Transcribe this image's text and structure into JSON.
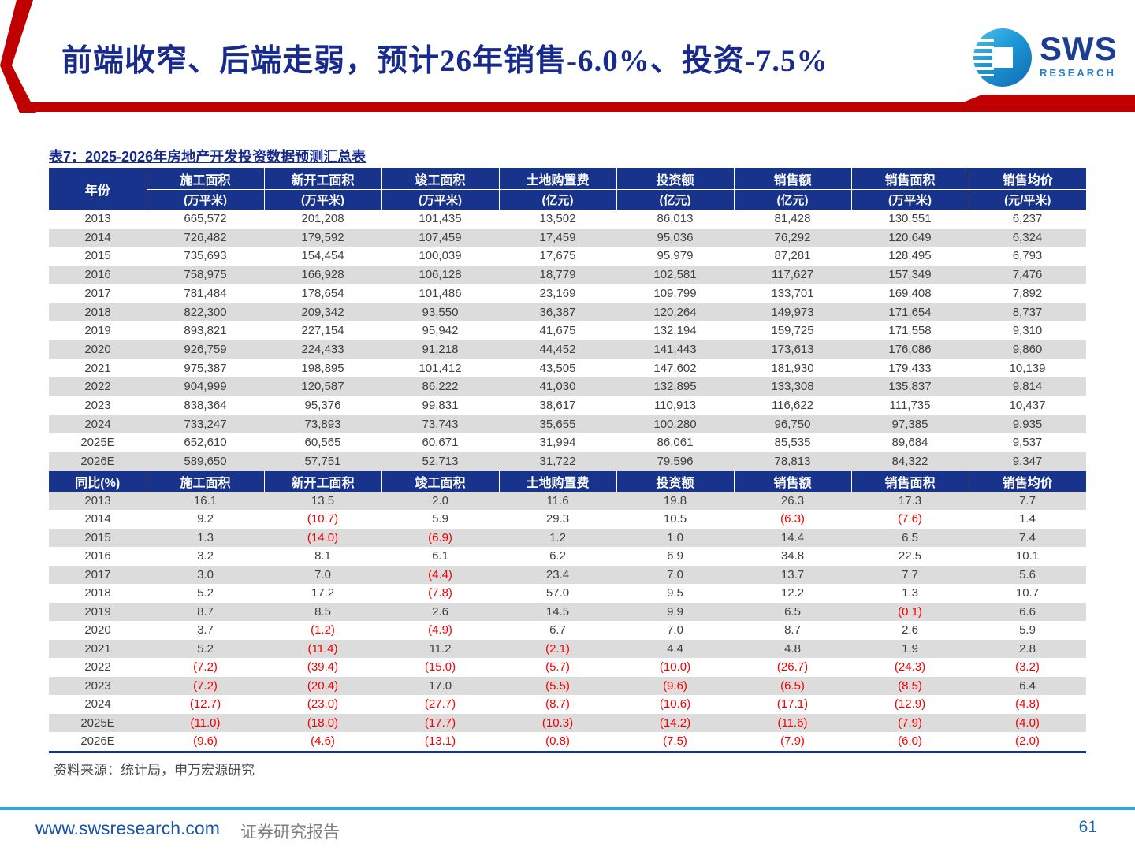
{
  "header": {
    "title": "前端收窄、后端走弱，预计26年销售-6.0%、投资-7.5%",
    "logo": {
      "brand": "SWS",
      "sub": "RESEARCH"
    }
  },
  "table": {
    "caption": "表7：2025-2026年房地产开发投资数据预测汇总表",
    "columns": [
      {
        "name": "年份",
        "unit": ""
      },
      {
        "name": "施工面积",
        "unit": "(万平米)"
      },
      {
        "name": "新开工面积",
        "unit": "(万平米)"
      },
      {
        "name": "竣工面积",
        "unit": "(万平米)"
      },
      {
        "name": "土地购置费",
        "unit": "(亿元)"
      },
      {
        "name": "投资额",
        "unit": "(亿元)"
      },
      {
        "name": "销售额",
        "unit": "(亿元)"
      },
      {
        "name": "销售面积",
        "unit": "(万平米)"
      },
      {
        "name": "销售均价",
        "unit": "(元/平米)"
      }
    ],
    "value_rows": [
      [
        "2013",
        "665,572",
        "201,208",
        "101,435",
        "13,502",
        "86,013",
        "81,428",
        "130,551",
        "6,237"
      ],
      [
        "2014",
        "726,482",
        "179,592",
        "107,459",
        "17,459",
        "95,036",
        "76,292",
        "120,649",
        "6,324"
      ],
      [
        "2015",
        "735,693",
        "154,454",
        "100,039",
        "17,675",
        "95,979",
        "87,281",
        "128,495",
        "6,793"
      ],
      [
        "2016",
        "758,975",
        "166,928",
        "106,128",
        "18,779",
        "102,581",
        "117,627",
        "157,349",
        "7,476"
      ],
      [
        "2017",
        "781,484",
        "178,654",
        "101,486",
        "23,169",
        "109,799",
        "133,701",
        "169,408",
        "7,892"
      ],
      [
        "2018",
        "822,300",
        "209,342",
        "93,550",
        "36,387",
        "120,264",
        "149,973",
        "171,654",
        "8,737"
      ],
      [
        "2019",
        "893,821",
        "227,154",
        "95,942",
        "41,675",
        "132,194",
        "159,725",
        "171,558",
        "9,310"
      ],
      [
        "2020",
        "926,759",
        "224,433",
        "91,218",
        "44,452",
        "141,443",
        "173,613",
        "176,086",
        "9,860"
      ],
      [
        "2021",
        "975,387",
        "198,895",
        "101,412",
        "43,505",
        "147,602",
        "181,930",
        "179,433",
        "10,139"
      ],
      [
        "2022",
        "904,999",
        "120,587",
        "86,222",
        "41,030",
        "132,895",
        "133,308",
        "135,837",
        "9,814"
      ],
      [
        "2023",
        "838,364",
        "95,376",
        "99,831",
        "38,617",
        "110,913",
        "116,622",
        "111,735",
        "10,437"
      ],
      [
        "2024",
        "733,247",
        "73,893",
        "73,743",
        "35,655",
        "100,280",
        "96,750",
        "97,385",
        "9,935"
      ],
      [
        "2025E",
        "652,610",
        "60,565",
        "60,671",
        "31,994",
        "86,061",
        "85,535",
        "89,684",
        "9,537"
      ],
      [
        "2026E",
        "589,650",
        "57,751",
        "52,713",
        "31,722",
        "79,596",
        "78,813",
        "84,322",
        "9,347"
      ]
    ],
    "yoy_header": [
      "同比(%)",
      "施工面积",
      "新开工面积",
      "竣工面积",
      "土地购置费",
      "投资额",
      "销售额",
      "销售面积",
      "销售均价"
    ],
    "yoy_rows": [
      [
        "2013",
        "16.1",
        "13.5",
        "2.0",
        "11.6",
        "19.8",
        "26.3",
        "17.3",
        "7.7"
      ],
      [
        "2014",
        "9.2",
        "(10.7)",
        "5.9",
        "29.3",
        "10.5",
        "(6.3)",
        "(7.6)",
        "1.4"
      ],
      [
        "2015",
        "1.3",
        "(14.0)",
        "(6.9)",
        "1.2",
        "1.0",
        "14.4",
        "6.5",
        "7.4"
      ],
      [
        "2016",
        "3.2",
        "8.1",
        "6.1",
        "6.2",
        "6.9",
        "34.8",
        "22.5",
        "10.1"
      ],
      [
        "2017",
        "3.0",
        "7.0",
        "(4.4)",
        "23.4",
        "7.0",
        "13.7",
        "7.7",
        "5.6"
      ],
      [
        "2018",
        "5.2",
        "17.2",
        "(7.8)",
        "57.0",
        "9.5",
        "12.2",
        "1.3",
        "10.7"
      ],
      [
        "2019",
        "8.7",
        "8.5",
        "2.6",
        "14.5",
        "9.9",
        "6.5",
        "(0.1)",
        "6.6"
      ],
      [
        "2020",
        "3.7",
        "(1.2)",
        "(4.9)",
        "6.7",
        "7.0",
        "8.7",
        "2.6",
        "5.9"
      ],
      [
        "2021",
        "5.2",
        "(11.4)",
        "11.2",
        "(2.1)",
        "4.4",
        "4.8",
        "1.9",
        "2.8"
      ],
      [
        "2022",
        "(7.2)",
        "(39.4)",
        "(15.0)",
        "(5.7)",
        "(10.0)",
        "(26.7)",
        "(24.3)",
        "(3.2)"
      ],
      [
        "2023",
        "(7.2)",
        "(20.4)",
        "17.0",
        "(5.5)",
        "(9.6)",
        "(6.5)",
        "(8.5)",
        "6.4"
      ],
      [
        "2024",
        "(12.7)",
        "(23.0)",
        "(27.7)",
        "(8.7)",
        "(10.6)",
        "(17.1)",
        "(12.9)",
        "(4.8)"
      ],
      [
        "2025E",
        "(11.0)",
        "(18.0)",
        "(17.7)",
        "(10.3)",
        "(14.2)",
        "(11.6)",
        "(7.9)",
        "(4.0)"
      ],
      [
        "2026E",
        "(9.6)",
        "(4.6)",
        "(13.1)",
        "(0.8)",
        "(7.5)",
        "(7.9)",
        "(6.0)",
        "(2.0)"
      ]
    ]
  },
  "source_note": "资料来源：统计局，申万宏源研究",
  "footer": {
    "url": "www.swsresearch.com",
    "label": "证券研究报告",
    "page": "61"
  },
  "colors": {
    "accent_red": "#C00000",
    "title_navy": "#182B8C",
    "table_header_blue": "#17338C",
    "row_stripe_gray": "#DCDCDC",
    "negative_red": "#F40000",
    "footer_line_blue": "#29ABE2",
    "footer_link_blue": "#1953A8"
  }
}
